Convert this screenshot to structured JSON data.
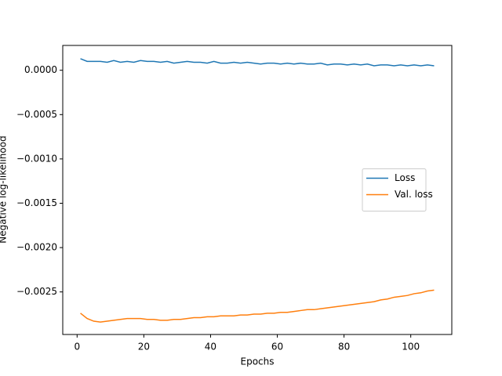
{
  "chart_data": {
    "type": "line",
    "xlabel": "Epochs",
    "ylabel": "Negative log-likelihood",
    "x": [
      1,
      3,
      5,
      7,
      9,
      11,
      13,
      15,
      17,
      19,
      21,
      23,
      25,
      27,
      29,
      31,
      33,
      35,
      37,
      39,
      41,
      43,
      45,
      47,
      49,
      51,
      53,
      55,
      57,
      59,
      61,
      63,
      65,
      67,
      69,
      71,
      73,
      75,
      77,
      79,
      81,
      83,
      85,
      87,
      89,
      91,
      93,
      95,
      97,
      99,
      101,
      103,
      105,
      107
    ],
    "series": [
      {
        "name": "Loss",
        "color": "#1f77b4",
        "values": [
          0.00013,
          0.0001,
          0.0001,
          0.0001,
          9e-05,
          0.00011,
          9e-05,
          0.0001,
          9e-05,
          0.00011,
          0.0001,
          0.0001,
          9e-05,
          0.0001,
          8e-05,
          9e-05,
          0.0001,
          9e-05,
          9e-05,
          8e-05,
          0.0001,
          8e-05,
          8e-05,
          9e-05,
          8e-05,
          9e-05,
          8e-05,
          7e-05,
          8e-05,
          8e-05,
          7e-05,
          8e-05,
          7e-05,
          8e-05,
          7e-05,
          7e-05,
          8e-05,
          6e-05,
          7e-05,
          7e-05,
          6e-05,
          7e-05,
          6e-05,
          7e-05,
          5e-05,
          6e-05,
          6e-05,
          5e-05,
          6e-05,
          5e-05,
          6e-05,
          5e-05,
          6e-05,
          5e-05
        ]
      },
      {
        "name": "Val. loss",
        "color": "#ff7f0e",
        "values": [
          -0.00274,
          -0.0028,
          -0.00283,
          -0.00284,
          -0.00283,
          -0.00282,
          -0.00281,
          -0.0028,
          -0.0028,
          -0.0028,
          -0.00281,
          -0.00281,
          -0.00282,
          -0.00282,
          -0.00281,
          -0.00281,
          -0.0028,
          -0.00279,
          -0.00279,
          -0.00278,
          -0.00278,
          -0.00277,
          -0.00277,
          -0.00277,
          -0.00276,
          -0.00276,
          -0.00275,
          -0.00275,
          -0.00274,
          -0.00274,
          -0.00273,
          -0.00273,
          -0.00272,
          -0.00271,
          -0.0027,
          -0.0027,
          -0.00269,
          -0.00268,
          -0.00267,
          -0.00266,
          -0.00265,
          -0.00264,
          -0.00263,
          -0.00262,
          -0.00261,
          -0.00259,
          -0.00258,
          -0.00256,
          -0.00255,
          -0.00254,
          -0.00252,
          -0.00251,
          -0.00249,
          -0.00248
        ]
      }
    ],
    "xlim": [
      -4.3,
      112.3
    ],
    "xticks": [
      0,
      20,
      40,
      60,
      80,
      100
    ],
    "ylim": [
      -0.00298,
      0.00028
    ],
    "yticks": [
      {
        "value": 0,
        "label": "0.0000"
      },
      {
        "value": -0.0005,
        "label": "−0.0005"
      },
      {
        "value": -0.001,
        "label": "−0.0010"
      },
      {
        "value": -0.0015,
        "label": "−0.0015"
      },
      {
        "value": -0.002,
        "label": "−0.0020"
      },
      {
        "value": -0.0025,
        "label": "−0.0025"
      }
    ],
    "legend": "center right",
    "grid": false
  }
}
